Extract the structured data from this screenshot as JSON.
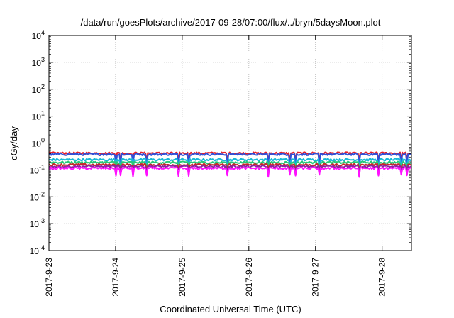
{
  "chart_data": {
    "type": "line",
    "title": "/data/run/goesPlots/archive/2017-09-28/07:00/flux/../bryn/5daysMoon.plot",
    "xlabel": "Coordinated Universal Time (UTC)",
    "ylabel": "cGy/day",
    "yscale": "log",
    "ylim": [
      0.0001,
      10000
    ],
    "xlim": [
      0,
      5.44
    ],
    "grid": true,
    "y_ticks": [
      {
        "base": "10",
        "exp": "-4"
      },
      {
        "base": "10",
        "exp": "-3"
      },
      {
        "base": "10",
        "exp": "-2"
      },
      {
        "base": "10",
        "exp": "-1"
      },
      {
        "base": "10",
        "exp": "0"
      },
      {
        "base": "10",
        "exp": "1"
      },
      {
        "base": "10",
        "exp": "2"
      },
      {
        "base": "10",
        "exp": "3"
      },
      {
        "base": "10",
        "exp": "4"
      }
    ],
    "x_ticks": [
      "2017-9-23",
      "2017-9-24",
      "2017-9-25",
      "2017-9-26",
      "2017-9-27",
      "2017-9-28"
    ],
    "series": [
      {
        "color": "#e8202a",
        "base": 0.42,
        "dip": 0.22
      },
      {
        "color": "#3050d8",
        "base": 0.38,
        "dip": 0.17
      },
      {
        "color": "#18b8d8",
        "base": 0.24,
        "dip": 0.12
      },
      {
        "color": "#28c878",
        "base": 0.19,
        "dip": 0.115
      },
      {
        "color": "#c82828",
        "base": 0.155,
        "dip": 0.105
      },
      {
        "color": "#9020a0",
        "base": 0.135,
        "dip": 0.095
      },
      {
        "color": "#ff10ff",
        "base": 0.115,
        "dip": 0.06
      }
    ]
  }
}
